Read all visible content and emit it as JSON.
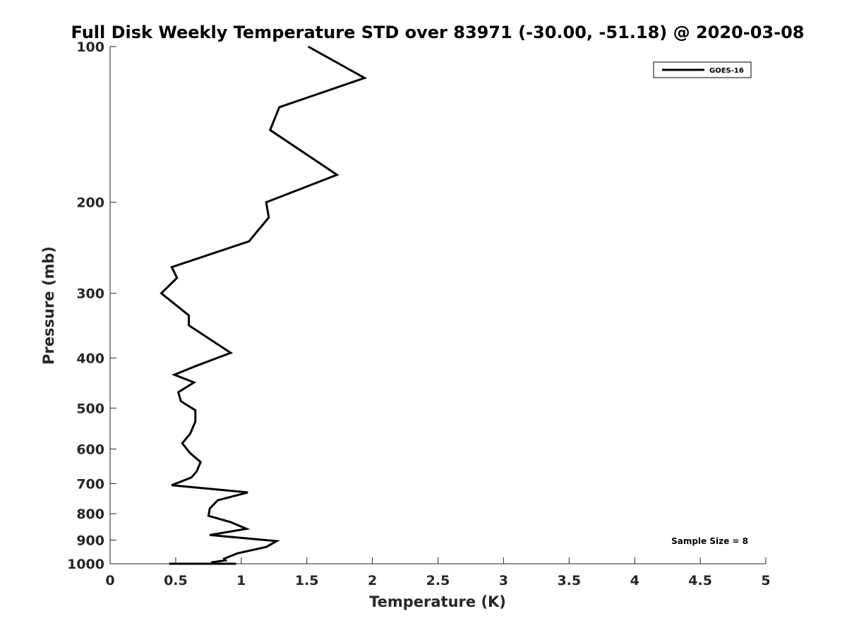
{
  "chart_data": {
    "type": "line",
    "title": "Full Disk Weekly Temperature STD over 83971 (-30.00, -51.18) @ 2020-03-08",
    "xlabel": "Temperature (K)",
    "ylabel": "Pressure (mb)",
    "xlim": [
      0,
      5
    ],
    "ylim": [
      100,
      1000
    ],
    "y_scale": "log",
    "y_reversed": true,
    "x_ticks": [
      0,
      0.5,
      1,
      1.5,
      2,
      2.5,
      3,
      3.5,
      4,
      4.5,
      5
    ],
    "x_tick_labels": [
      "0",
      "0.5",
      "1",
      "1.5",
      "2",
      "2.5",
      "3",
      "3.5",
      "4",
      "4.5",
      "5"
    ],
    "y_ticks": [
      100,
      200,
      300,
      400,
      500,
      600,
      700,
      800,
      900,
      1000
    ],
    "y_tick_labels": [
      "100",
      "200",
      "300",
      "400",
      "500",
      "600",
      "700",
      "800",
      "900",
      "1000"
    ],
    "grid": false,
    "legend_position": "top-right",
    "line_color": "#000000",
    "annotation": "Sample Size = 8",
    "series": [
      {
        "name": "GOES-16",
        "x": [
          1.51,
          1.94,
          1.29,
          1.22,
          1.73,
          1.19,
          1.21,
          1.06,
          0.47,
          0.51,
          0.39,
          0.6,
          0.6,
          0.92,
          0.66,
          0.49,
          0.64,
          0.52,
          0.54,
          0.65,
          0.65,
          0.61,
          0.55,
          0.61,
          0.69,
          0.66,
          0.62,
          0.47,
          1.05,
          0.82,
          0.76,
          0.75,
          0.92,
          1.04,
          0.76,
          1.27,
          1.19,
          0.97,
          0.87,
          0.88,
          0.77,
          0.82,
          0.45,
          0.96
        ],
        "y": [
          100,
          115,
          131,
          145,
          177,
          200,
          214,
          238,
          267,
          280,
          300,
          331,
          346,
          391,
          414,
          431,
          446,
          466,
          485,
          505,
          531,
          561,
          585,
          611,
          636,
          663,
          681,
          705,
          728,
          754,
          782,
          808,
          831,
          856,
          880,
          904,
          928,
          955,
          978,
          985,
          994,
          1000,
          1010,
          1028
        ]
      }
    ]
  }
}
